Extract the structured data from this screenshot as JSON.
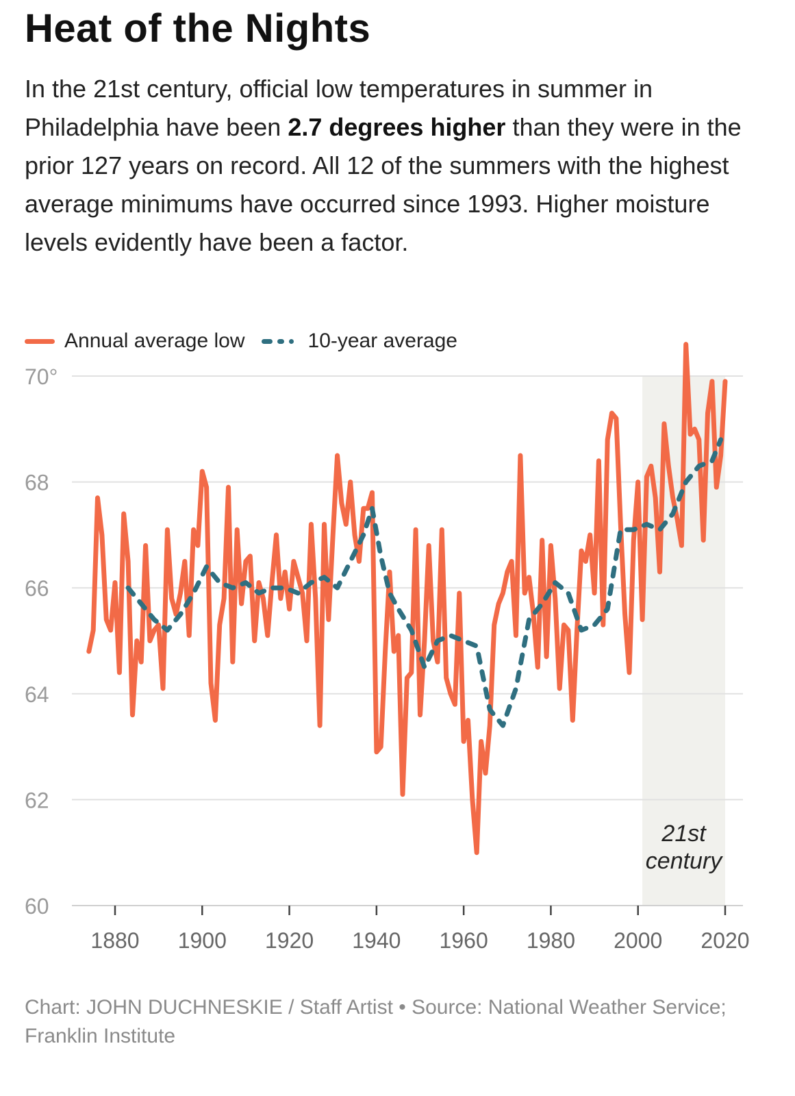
{
  "title": "Heat of the Nights",
  "intro": {
    "before": "In the 21st century, official low temperatures in summer in Philadelphia have been ",
    "highlight": "2.7 degrees higher",
    "after": " than they were in the prior 127 years on record. All 12 of the summers with the highest average minimums have occurred since 1993. Higher moisture levels evidently have been a factor."
  },
  "legend": {
    "annual_label": "Annual average low",
    "avg_label": "10-year average"
  },
  "colors": {
    "annual": "#f26a47",
    "avg": "#2f6f80",
    "grid": "#e1e1e1",
    "shade": "#f1f1ed",
    "axis_text": "#9a9a9a"
  },
  "source": "Chart: JOHN DUCHNESKIE / Staff Artist • Source: National Weather Service; Franklin Institute",
  "chart_data": {
    "type": "line",
    "xlim": [
      1872,
      2024
    ],
    "ylim": [
      60,
      70.8
    ],
    "x_ticks": [
      1880,
      1900,
      1920,
      1940,
      1960,
      1980,
      2000,
      2020
    ],
    "y_ticks": [
      {
        "value": 70,
        "label": "70°"
      },
      {
        "value": 68,
        "label": "68"
      },
      {
        "value": 66,
        "label": "66"
      },
      {
        "value": 64,
        "label": "64"
      },
      {
        "value": 62,
        "label": "62"
      },
      {
        "value": 60,
        "label": "60"
      }
    ],
    "shaded_region": {
      "from": 2001,
      "to": 2020,
      "label_line1": "21st",
      "label_line2": "century"
    },
    "series": [
      {
        "name": "Annual average low",
        "style": "solid",
        "x": [
          1874,
          1875,
          1876,
          1877,
          1878,
          1879,
          1880,
          1881,
          1882,
          1883,
          1884,
          1885,
          1886,
          1887,
          1888,
          1889,
          1890,
          1891,
          1892,
          1893,
          1894,
          1895,
          1896,
          1897,
          1898,
          1899,
          1900,
          1901,
          1902,
          1903,
          1904,
          1905,
          1906,
          1907,
          1908,
          1909,
          1910,
          1911,
          1912,
          1913,
          1914,
          1915,
          1916,
          1917,
          1918,
          1919,
          1920,
          1921,
          1922,
          1923,
          1924,
          1925,
          1926,
          1927,
          1928,
          1929,
          1930,
          1931,
          1932,
          1933,
          1934,
          1935,
          1936,
          1937,
          1938,
          1939,
          1940,
          1941,
          1942,
          1943,
          1944,
          1945,
          1946,
          1947,
          1948,
          1949,
          1950,
          1951,
          1952,
          1953,
          1954,
          1955,
          1956,
          1957,
          1958,
          1959,
          1960,
          1961,
          1962,
          1963,
          1964,
          1965,
          1966,
          1967,
          1968,
          1969,
          1970,
          1971,
          1972,
          1973,
          1974,
          1975,
          1976,
          1977,
          1978,
          1979,
          1980,
          1981,
          1982,
          1983,
          1984,
          1985,
          1986,
          1987,
          1988,
          1989,
          1990,
          1991,
          1992,
          1993,
          1994,
          1995,
          1996,
          1997,
          1998,
          1999,
          2000,
          2001,
          2002,
          2003,
          2004,
          2005,
          2006,
          2007,
          2008,
          2009,
          2010,
          2011,
          2012,
          2013,
          2014,
          2015,
          2016,
          2017,
          2018,
          2019,
          2020
        ],
        "values": [
          64.8,
          65.2,
          67.7,
          67.0,
          65.4,
          65.2,
          66.1,
          64.4,
          67.4,
          66.5,
          63.6,
          65.0,
          64.6,
          66.8,
          65.0,
          65.2,
          65.3,
          64.1,
          67.1,
          65.8,
          65.5,
          65.9,
          66.5,
          65.1,
          67.1,
          66.8,
          68.2,
          67.9,
          64.2,
          63.5,
          65.3,
          65.8,
          67.9,
          64.6,
          67.1,
          65.7,
          66.5,
          66.6,
          65.0,
          66.1,
          65.8,
          65.1,
          66.1,
          67.0,
          65.8,
          66.3,
          65.6,
          66.5,
          66.2,
          65.9,
          65.0,
          67.2,
          65.8,
          63.4,
          67.2,
          65.4,
          67.0,
          68.5,
          67.6,
          67.2,
          68.0,
          67.0,
          66.5,
          67.5,
          67.5,
          67.8,
          62.9,
          63.0,
          64.8,
          66.3,
          64.8,
          65.1,
          62.1,
          64.3,
          64.4,
          67.1,
          63.6,
          65.0,
          66.8,
          65.0,
          64.6,
          67.1,
          64.3,
          64.0,
          63.8,
          65.9,
          63.1,
          63.5,
          62.0,
          61.0,
          63.1,
          62.5,
          63.4,
          65.3,
          65.7,
          65.9,
          66.3,
          66.5,
          65.1,
          68.5,
          65.9,
          66.2,
          65.5,
          64.5,
          66.9,
          64.7,
          66.8,
          65.8,
          64.1,
          65.3,
          65.2,
          63.5,
          65.2,
          66.7,
          66.5,
          67.0,
          65.9,
          68.4,
          65.3,
          68.8,
          69.3,
          69.2,
          67.2,
          65.5,
          64.4,
          66.9,
          68.0,
          65.4,
          68.1,
          68.3,
          67.7,
          66.3,
          69.1,
          68.3,
          67.7,
          67.3,
          66.8,
          70.6,
          68.9,
          69.0,
          68.8,
          66.9,
          69.3,
          69.9,
          67.9,
          68.5,
          69.9
        ]
      },
      {
        "name": "10-year average",
        "style": "dotted",
        "x": [
          1883,
          1886,
          1889,
          1892,
          1895,
          1898,
          1901,
          1904,
          1907,
          1910,
          1913,
          1916,
          1919,
          1922,
          1925,
          1928,
          1931,
          1934,
          1937,
          1939,
          1941,
          1943,
          1945,
          1948,
          1951,
          1954,
          1957,
          1960,
          1963,
          1966,
          1969,
          1972,
          1975,
          1978,
          1981,
          1984,
          1987,
          1990,
          1993,
          1996,
          1999,
          2002,
          2005,
          2008,
          2011,
          2014,
          2017,
          2019
        ],
        "values": [
          66.0,
          65.7,
          65.4,
          65.2,
          65.5,
          65.9,
          66.4,
          66.1,
          66.0,
          66.1,
          65.9,
          66.0,
          66.0,
          65.9,
          66.1,
          66.2,
          66.0,
          66.5,
          67.0,
          67.5,
          66.6,
          65.9,
          65.6,
          65.2,
          64.5,
          65.0,
          65.1,
          65.0,
          64.9,
          63.7,
          63.4,
          64.1,
          65.4,
          65.7,
          66.1,
          65.9,
          65.2,
          65.3,
          65.6,
          67.1,
          67.1,
          67.2,
          67.1,
          67.4,
          68.0,
          68.3,
          68.4,
          68.8
        ]
      }
    ]
  }
}
